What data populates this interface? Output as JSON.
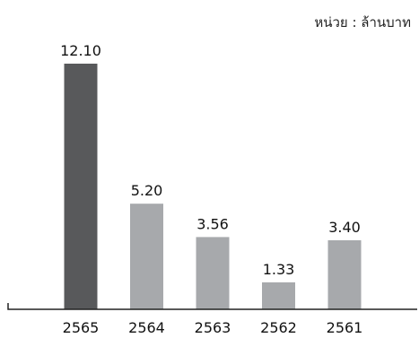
{
  "chart_data": {
    "type": "bar",
    "unit_label": "หน่วย : ล้านบาท",
    "categories": [
      "2565",
      "2564",
      "2563",
      "2562",
      "2561"
    ],
    "values": [
      12.1,
      5.2,
      3.56,
      1.33,
      3.4
    ],
    "value_labels": [
      "12.10",
      "5.20",
      "3.56",
      "1.33",
      "3.40"
    ],
    "ylim": [
      0,
      12.1
    ],
    "grid": false,
    "legend": "none",
    "colors": {
      "highlight_bar": "#58595b",
      "bar": "#a7a9ac",
      "axis": "#222222"
    },
    "highlight_index": 0
  }
}
